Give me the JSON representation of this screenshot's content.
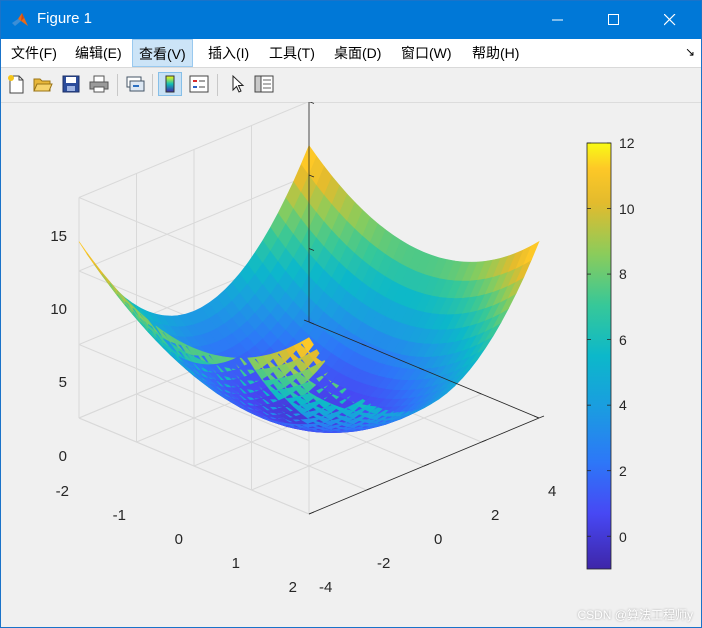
{
  "window": {
    "title": "Figure 1",
    "minimize_glyph": "—",
    "maximize_glyph": "☐",
    "close_glyph": "✕",
    "icon": "matlab-icon",
    "accent": "#0078d7"
  },
  "menu": {
    "items": [
      "文件(F)",
      "编辑(E)",
      "查看(V)",
      "插入(I)",
      "工具(T)",
      "桌面(D)",
      "窗口(W)",
      "帮助(H)"
    ],
    "active": "查看(V)",
    "dock_glyph": "↘"
  },
  "toolbar": {
    "buttons": [
      "new-figure-icon",
      "open-file-icon",
      "save-icon",
      "print-icon",
      "link-plot-icon",
      "colorbar-icon",
      "legend-icon",
      "pointer-icon",
      "property-editor-icon"
    ],
    "pressed": "colorbar-icon"
  },
  "plot": {
    "z_ticks": [
      "15",
      "10",
      "5",
      "0"
    ],
    "x_ticks": [
      "-2",
      "-1",
      "0",
      "1",
      "2"
    ],
    "y_ticks": [
      "-4",
      "-2",
      "0",
      "2",
      "4"
    ],
    "colorbar_ticks": [
      "12",
      "10",
      "8",
      "6",
      "4",
      "2",
      "0"
    ],
    "colorbar_range": [
      -1,
      12
    ],
    "surface_range_z": [
      0,
      12
    ],
    "colormap": "parula",
    "grid": true
  },
  "watermark": "CSDN @算法工程师y"
}
